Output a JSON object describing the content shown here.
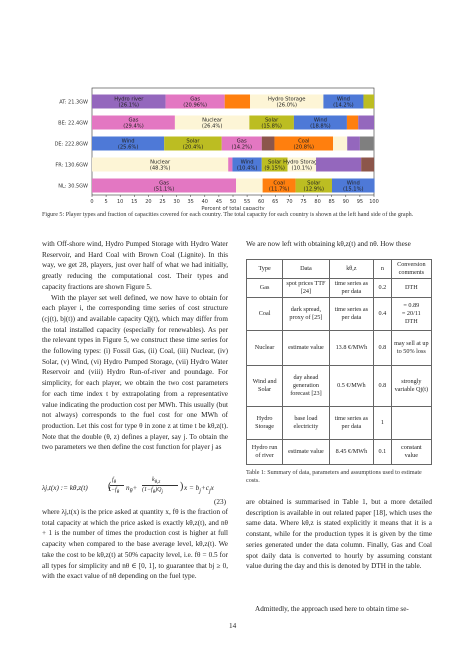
{
  "chart_data": {
    "type": "bar",
    "orientation": "horizontal",
    "stacked": true,
    "categories": [
      "AT: 21.3GW",
      "BE: 22.4GW",
      "DE: 222.8GW",
      "FR: 130.6GW",
      "NL: 30.5GW"
    ],
    "xlabel": "Percent of total capacity",
    "xlim": [
      0,
      100
    ],
    "xticks": [
      "0",
      "5",
      "10",
      "15",
      "20",
      "25",
      "30",
      "35",
      "40",
      "45",
      "50",
      "55",
      "60",
      "65",
      "70",
      "75",
      "80",
      "85",
      "90",
      "95",
      "100"
    ],
    "segments": [
      [
        {
          "label": "Hydro river",
          "pct_text": "(26.1%)",
          "value": 26.1,
          "color": "#9467bd"
        },
        {
          "label": "Gas",
          "pct_text": "(20.96%)",
          "value": 20.96,
          "color": "#e377c2"
        },
        {
          "label": "",
          "pct_text": "",
          "value": 9.0,
          "color": "#ff7f0e"
        },
        {
          "label": "Hydro Storage",
          "pct_text": "(26.0%)",
          "value": 26.0,
          "color": "#fdf5d6"
        },
        {
          "label": "Wind",
          "pct_text": "(14.2%)",
          "value": 14.2,
          "color": "#4e79d7"
        },
        {
          "label": "",
          "pct_text": "",
          "value": 3.74,
          "color": "#bcbd22"
        }
      ],
      [
        {
          "label": "Gas",
          "pct_text": "(29.4%)",
          "value": 29.4,
          "color": "#e377c2"
        },
        {
          "label": "Nuclear",
          "pct_text": "(26.4%)",
          "value": 26.4,
          "color": "#fdf5d6"
        },
        {
          "label": "Solar",
          "pct_text": "(15.8%)",
          "value": 15.8,
          "color": "#bcbd22"
        },
        {
          "label": "Wind",
          "pct_text": "(18.8%)",
          "value": 18.8,
          "color": "#4e79d7"
        },
        {
          "label": "",
          "pct_text": "",
          "value": 4.0,
          "color": "#ff7f0e"
        },
        {
          "label": "",
          "pct_text": "",
          "value": 5.6,
          "color": "#9467bd"
        }
      ],
      [
        {
          "label": "Wind",
          "pct_text": "(25.6%)",
          "value": 25.6,
          "color": "#4e79d7"
        },
        {
          "label": "Solar",
          "pct_text": "(20.4%)",
          "value": 20.4,
          "color": "#bcbd22"
        },
        {
          "label": "Gas",
          "pct_text": "(14.2%)",
          "value": 14.2,
          "color": "#e377c2"
        },
        {
          "label": "",
          "pct_text": "",
          "value": 4.5,
          "color": "#8c564b"
        },
        {
          "label": "Coal",
          "pct_text": "(20.8%)",
          "value": 20.8,
          "color": "#ff7f0e"
        },
        {
          "label": "",
          "pct_text": "",
          "value": 5.0,
          "color": "#fdf5d6"
        },
        {
          "label": "",
          "pct_text": "",
          "value": 4.5,
          "color": "#9467bd"
        },
        {
          "label": "",
          "pct_text": "",
          "value": 4.8,
          "color": "#7f7f7f"
        }
      ],
      [
        {
          "label": "Nuclear",
          "pct_text": "(48.3%)",
          "value": 48.3,
          "color": "#fdf5d6"
        },
        {
          "label": "",
          "pct_text": "",
          "value": 1.5,
          "color": "#e377c2"
        },
        {
          "label": "Wind",
          "pct_text": "(10.4%)",
          "value": 10.4,
          "color": "#4e79d7"
        },
        {
          "label": "Solar",
          "pct_text": "(9.15%)",
          "value": 9.15,
          "color": "#bcbd22"
        },
        {
          "label": "Hydro Storage",
          "pct_text": "(10.1%)",
          "value": 10.1,
          "color": "#fdf5d6"
        },
        {
          "label": "",
          "pct_text": "",
          "value": 16.0,
          "color": "#9467bd"
        },
        {
          "label": "",
          "pct_text": "",
          "value": 4.55,
          "color": "#8c564b"
        }
      ],
      [
        {
          "label": "Gas",
          "pct_text": "(51.1%)",
          "value": 51.1,
          "color": "#e377c2"
        },
        {
          "label": "",
          "pct_text": "",
          "value": 9.4,
          "color": "#fdf5d6"
        },
        {
          "label": "Coal",
          "pct_text": "(11.7%)",
          "value": 11.7,
          "color": "#ff7f0e"
        },
        {
          "label": "Solar",
          "pct_text": "(12.9%)",
          "value": 12.9,
          "color": "#bcbd22"
        },
        {
          "label": "Wind",
          "pct_text": "(15.1%)",
          "value": 15.1,
          "color": "#4e79d7"
        }
      ]
    ]
  },
  "figure": {
    "caption": "Figure 5: Player types and fraction of capacities covered for each country. The total capacity for each country is shown at the left hand side of the graph."
  },
  "left_col": {
    "p1": "with Off-shore wind, Hydro Pumped Storage with Hydro Water Reservoir, and Hard Coal with Brown Coal (Lignite). In this way, we get 28, players, just over half of what we had initially, greatly reducing the computational cost. Their types and capacity fractions are shown Figure 5.",
    "p2": "With the player set well defined, we now have to obtain for each player i, the corresponding time series of cost structure (cj(t), bj(t)) and available capacity Qj(t), which may differ from the total installed capacity (especially for renewables). As per the relevant types in Figure 5, we construct these time series for the following types: (i) Fossil Gas, (ii) Coal, (iii) Nuclear, (iv) Solar, (v) Wind, (vi) Hydro Pumped Storage, (vii) Hydro Water Reservoir and (viii) Hydro Run-of-river and poundage. For simplicity, for each player, we obtain the two cost parameters for each time index t by extrapolating from a representative value indicating the production cost per MWh. This usually (but not always) corresponds to the fuel cost for one MWh of production. Let this cost for type θ in zone z at time t be kθ,z(t). Note that the double (θ, z) defines a player, say j. To obtain the two parameters we then define the cost function for player j as",
    "eq_lhs": "λj,t(x) := kθ,z(t)",
    "eq_num": "(23)",
    "p3": "where λj,t(x) is the price asked at quantity x, fθ is the fraction of total capacity at which the price asked is exactly kθ,z(t), and nθ + 1 is the number of times the production cost is higher at full capacity when compared to the base average level, kθ,z(t). We take the cost to be kθ,z(t) at 50% capacity level, i.e. fθ = 0.5 for all types for simplicity and nθ ∈ [0, 1], to guarantee that bj ≥ 0, with the exact value of nθ depending on the fuel type."
  },
  "right_col": {
    "intro": "We are now left with obtaining kθ,z(t) and nθ. How these",
    "after": "are obtained is summarised in Table 1, but a more detailed description is available in out related paper [18], which uses the same data. Where kθ,z is stated explicitly it means that it is a constant, while for the production types it is given by the time series generated under the data column. Finally, Gas and Coal spot daily data is converted to hourly by assuming constant value during the day and this is denoted by DTH in the table.",
    "last": "Admittedly, the approach used here to obtain time se-"
  },
  "table": {
    "headers": [
      "Type",
      "Data",
      "kθ,z",
      "n",
      "Conversion comments"
    ],
    "rows": [
      [
        "Gas",
        "spot prices TTF [24]",
        "time series as per data",
        "0.2",
        "DTH"
      ],
      [
        "Coal",
        "dark spread, proxy of [25]",
        "time series as per data",
        "0.4",
        "DTH"
      ],
      [
        "Nuclear",
        "estimate value",
        "13.8 €/MWh",
        "0.8",
        "may sell at up to 50% loss"
      ],
      [
        "Wind and Solar",
        "day ahead generation forecast [23]",
        "0.5 €/MWh",
        "0.8",
        "strongly variable Qj(t)"
      ],
      [
        "Hydro Storage",
        "base load electricity",
        "time series as per data",
        "1",
        ""
      ],
      [
        "Hydro run of river",
        "estimate value",
        "8.45 €/MWh",
        "0.1",
        "constant value"
      ]
    ],
    "coal_conv": "= 0.89",
    "coal_conv2": "= 20/11",
    "caption": "Table 1: Summary of data, parameters and assumptions used to estimate costs."
  },
  "page": {
    "number": "14"
  }
}
